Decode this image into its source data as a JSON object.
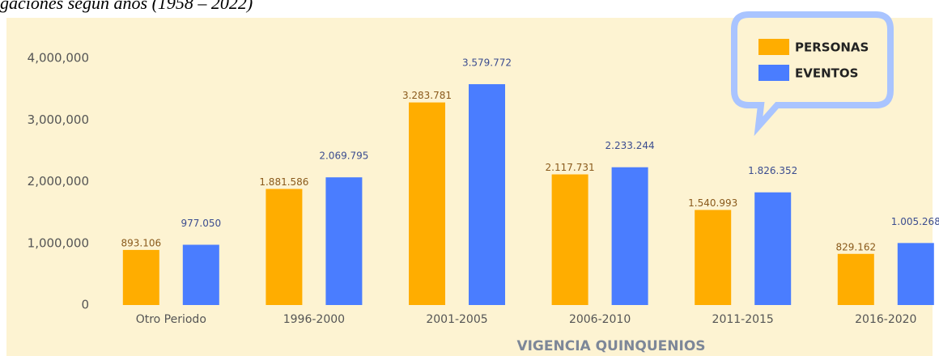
{
  "chart_data": {
    "type": "bar",
    "title": "gaciones según años (1958 – 2022)",
    "x_label": "VIGENCIA QUINQUENIOS",
    "categories": [
      "Otro Periodo",
      "1996-2000",
      "2001-2005",
      "2006-2010",
      "2011-2015",
      "2016-2020"
    ],
    "series": [
      {
        "name": "PERSONAS",
        "color": "#ffad00",
        "label_color": "#8a5a1c",
        "values": [
          893106,
          1881586,
          3283781,
          2117731,
          1540993,
          829162
        ],
        "value_labels": [
          "893.106",
          "1.881.586",
          "3.283.781",
          "2.117.731",
          "1.540.993",
          "829.162"
        ]
      },
      {
        "name": "EVENTOS",
        "color": "#4a7dff",
        "label_color": "#3b4c8f",
        "values": [
          977050,
          2069795,
          3579772,
          2233244,
          1826352,
          1005268
        ],
        "value_labels": [
          "977.050",
          "2.069.795",
          "3.579.772",
          "2.233.244",
          "1.826.352",
          "1.005.268"
        ]
      }
    ],
    "ylim": [
      0,
      4000000
    ],
    "yticks": [
      0,
      {
        "value": 1000000,
        "label": "1,000,000"
      },
      {
        "value": 2000000,
        "label": "2,000,000"
      },
      {
        "value": 3000000,
        "label": "3,000,000"
      },
      {
        "value": 4000000,
        "label": "4,000,000"
      }
    ],
    "grid": false,
    "legend": "top-right"
  }
}
